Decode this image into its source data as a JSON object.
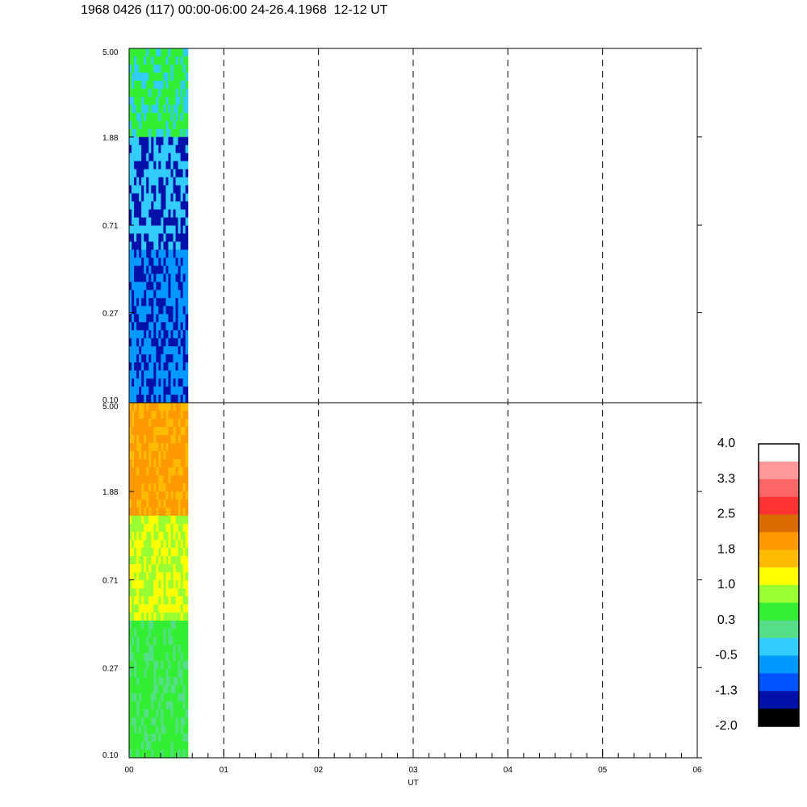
{
  "title": "1968 0426 (117) 00:00-06:00 24-26.4.1968  12-12 UT",
  "chart_data": {
    "type": "heatmap",
    "title": "1968 0426 (117) 00:00-06:00 24-26.4.1968  12-12 UT",
    "xlabel": "UT",
    "xlim": [
      0,
      6
    ],
    "x_ticks": [
      "00",
      "01",
      "02",
      "03",
      "04",
      "05",
      "06"
    ],
    "y_scale": "log",
    "y_ticks": [
      "0.10",
      "0.27",
      "0.71",
      "1.88",
      "5.00"
    ],
    "ylim": [
      0.1,
      5.0
    ],
    "data_coverage_ut": [
      0.0,
      0.62
    ],
    "panels": [
      {
        "panel": "upper",
        "dominant_levels": [
          "-1.3",
          "-0.5",
          "0.3"
        ]
      },
      {
        "panel": "lower",
        "dominant_levels": [
          "0.3",
          "1.0",
          "1.8",
          "2.5"
        ]
      }
    ],
    "colorbar": {
      "labels": [
        "4.0",
        "3.3",
        "2.5",
        "1.8",
        "1.0",
        "0.3",
        "-0.5",
        "-1.3",
        "-2.0"
      ],
      "colors": [
        "#ffffff",
        "#ff9999",
        "#ff6666",
        "#ff3333",
        "#d96b00",
        "#ff9900",
        "#ffbb00",
        "#ffff00",
        "#99ff33",
        "#33ee33",
        "#55dd88",
        "#33ccff",
        "#0099ff",
        "#0055ff",
        "#0011aa",
        "#000000"
      ]
    },
    "grid": "dashed vertical at each hour"
  }
}
